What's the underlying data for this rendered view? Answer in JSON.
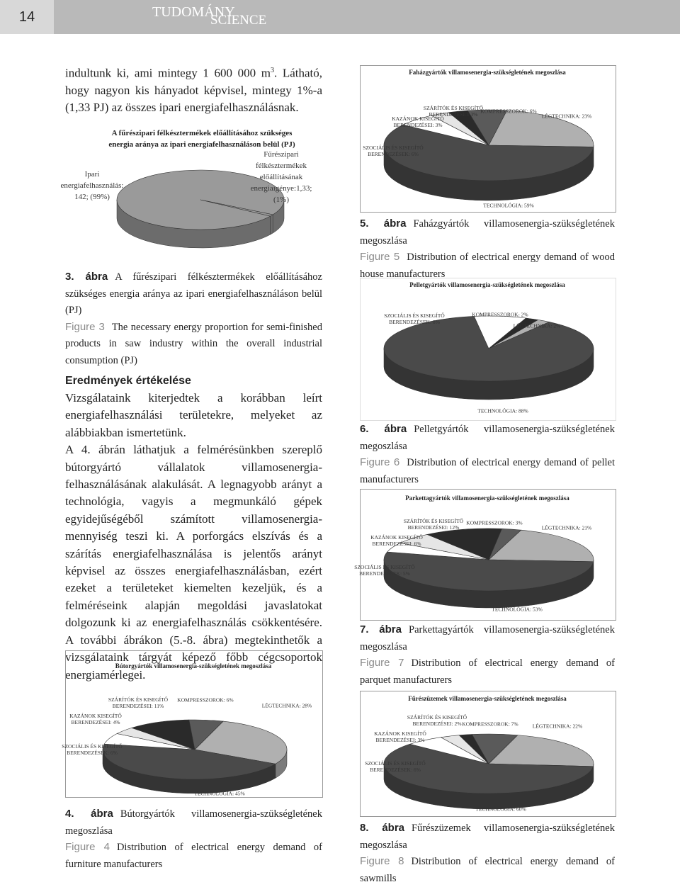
{
  "header": {
    "page_number": "14",
    "title": "TUDOMÁNY",
    "subtitle": "SCIENCE"
  },
  "intro": {
    "text_before": "indultunk ki, ami mintegy 1 600 000 m",
    "sup": "3",
    "text_after": ". Látható, hogy nagyon kis hányadot képvisel, mintegy 1%-a (1,33 PJ) az összes ipari energiafelhasználásnak."
  },
  "section": {
    "heading": "Eredmények értékelése",
    "paragraphs": [
      "Vizsgálataink kiterjedtek a korábban leírt energiafelhasználási területekre, melyeket az alábbiakban ismertetünk.",
      "A 4. ábrán láthatjuk a felmérésünkben szereplő bútorgyártó vállalatok villamosenergia-felhasználásának alakulását. A legnagyobb arányt a technológia, vagyis a megmunkáló gépek egyidejűségéből számított villamosenergia-mennyiség teszi ki. A porforgács elszívás és a szárítás energiafelhasználása is jelentős arányt képvisel az összes energiafelhasználásban, ezért ezeket a területeket kiemelten kezeljük, és a felméréseink alapján megoldási javaslatokat dolgozunk ki az energiafelhasználás csökkentésére. A további ábrákon (5.-8. ábra) megtekinthetők a vizsgálataink tárgyát képező főbb cégcsoportok energiamérlegei."
    ]
  },
  "chart_data": [
    {
      "type": "pie",
      "title": "A fűrészipari félkésztermékek előállításához szükséges energia aránya az ipari energiafelhasználáson belül (PJ)",
      "values": [
        142,
        1.33
      ],
      "value_labels": [
        "Ipari energiafelhasználás: 142; (99%)",
        "Fűrészipari félkésztermékek előállításának energiaigénye:1,33; (1%)"
      ],
      "colors": [
        "#9a9a9a",
        "#9a9a9a"
      ],
      "caption": {
        "label": "3. ábra",
        "text": "A fűrészipari félkésztermékek előállításához szükséges energia aránya az ipari energiafelhasználáson belül (PJ)",
        "figure_label": "Figure 3",
        "figure_text": "The necessary energy proportion for semi-finished products in saw industry within the overall industrial consumption (PJ)"
      }
    },
    {
      "type": "pie",
      "title": "Bútorgyártók villamosenergia-szükségletének megoszlása",
      "values": [
        28,
        45,
        6,
        4,
        11,
        6
      ],
      "value_labels": [
        "LÉGTECHNIKA: 28%",
        "TECHNOLÓGIA: 45%",
        "SZOCIÁLIS ÉS KISEGÍTŐ BERENDEZÉSEK: 6%",
        "KAZÁNOK KISEGÍTŐ BERENDEZÉSEI: 4%",
        "SZÁRÍTÓK ÉS KISEGÍTŐ BERENDEZÉSEI: 11%",
        "KOMPRESSZOROK: 6%"
      ],
      "colors": [
        "#b0b0b0",
        "#4a4a4a",
        "#ffffff",
        "#e6e6e6",
        "#2a2a2a",
        "#5a5a5a"
      ],
      "caption": {
        "label": "4. ábra",
        "text": "Bútorgyártók villamosenergia-szükségletének megoszlása",
        "figure_label": "Figure 4",
        "figure_text": "Distribution of electrical energy demand of furniture manufacturers"
      }
    },
    {
      "type": "pie",
      "title": "Faházgyártók villamosenergia-szükségletének megoszlása",
      "values": [
        23,
        59,
        6,
        3,
        3,
        6
      ],
      "value_labels": [
        "LÉGTECHNIKA: 23%",
        "TECHNOLÓGIA: 59%",
        "SZOCIÁLIS ÉS KISEGÍTŐ BERENDEZÉSEK: 6%",
        "KAZÁNOK KISEGÍTŐ BERENDEZÉSEI: 3%",
        "SZÁRÍTÓK ÉS KISEGÍTŐ BERENDEZÉSEI: 3%",
        "KOMPRESSZOROK: 6%"
      ],
      "colors": [
        "#b0b0b0",
        "#4a4a4a",
        "#ffffff",
        "#e6e6e6",
        "#2a2a2a",
        "#5a5a5a"
      ],
      "caption": {
        "label": "5. ábra",
        "text": "Faházgyártók villamosenergia-szükségletének megoszlása",
        "figure_label": "Figure 5",
        "figure_text": "Distribution of electrical energy demand of wood house manufacturers"
      }
    },
    {
      "type": "pie",
      "title": "Pelletgyártók villamosenergia-szükségletének megoszlása",
      "values": [
        2,
        88,
        8,
        2
      ],
      "value_labels": [
        "LÉGTECHNIKA: 2%",
        "TECHNOLÓGIA: 88%",
        "SZOCIÁLIS ÉS KISEGÍTŐ BERENDEZÉSEK: 8%",
        "KOMPRESSZOROK: 2%"
      ],
      "colors": [
        "#b0b0b0",
        "#4a4a4a",
        "#ffffff",
        "#2a2a2a"
      ],
      "caption": {
        "label": "6. ábra",
        "text": "Pelletgyártók villamosenergia-szükségletének megoszlása",
        "figure_label": "Figure 6",
        "figure_text": "Distribution of electrical energy demand of pellet manufacturers"
      }
    },
    {
      "type": "pie",
      "title": "Parkettagyártók villamosenergia-szükségletének megoszlása",
      "values": [
        21,
        53,
        5,
        6,
        12,
        3
      ],
      "value_labels": [
        "LÉGTECHNIKA: 21%",
        "TECHNOLÓGIA: 53%",
        "SZOCIÁLIS ÉS KISEGÍTŐ BERENDEZÉSEK: 5%",
        "KAZÁNOK KISEGÍTŐ BERENDEZÉSEI: 6%",
        "SZÁRÍTÓK ÉS KISEGÍTŐ BERENDEZÉSEI: 12%",
        "KOMPRESSZOROK: 3%"
      ],
      "colors": [
        "#b0b0b0",
        "#4a4a4a",
        "#ffffff",
        "#e6e6e6",
        "#2a2a2a",
        "#5a5a5a"
      ],
      "caption": {
        "label": "7. ábra",
        "text": "Parkettagyártók villamosenergia-szükségletének megoszlása",
        "figure_label": "Figure 7",
        "figure_text": "Distribution of electrical energy demand of parquet manufacturers"
      }
    },
    {
      "type": "pie",
      "title": "Fűrészüzemek villamosenergia-szükségletének megoszlása",
      "values": [
        22,
        60,
        6,
        3,
        2,
        7
      ],
      "value_labels": [
        "LÉGTECHNIKA: 22%",
        "TECHNOLÓGIA: 60%",
        "SZOCIÁLIS ÉS KISEGÍTŐ BERENDEZÉSEK: 6%",
        "KAZÁNOK KISEGÍTŐ BERENDEZÉSEI: 3%",
        "SZÁRÍTÓK ÉS KISEGÍTŐ BERENDEZÉSEI: 2%",
        "KOMPRESSZOROK: 7%"
      ],
      "colors": [
        "#b0b0b0",
        "#4a4a4a",
        "#ffffff",
        "#e6e6e6",
        "#2a2a2a",
        "#5a5a5a"
      ],
      "caption": {
        "label": "8. ábra",
        "text": "Fűrészüzemek villamosenergia-szükségletének megoszlása",
        "figure_label": "Figure 8",
        "figure_text": "Distribution of electrical energy demand of sawmills"
      }
    }
  ]
}
